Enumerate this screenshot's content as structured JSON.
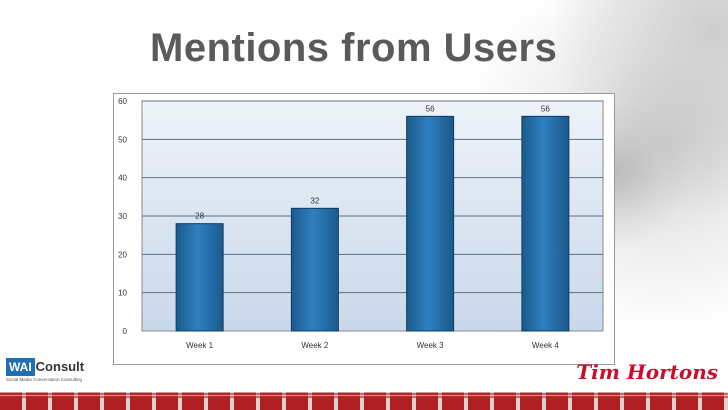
{
  "slide": {
    "title": "Mentions from Users"
  },
  "logos": {
    "left_box": "WAI",
    "left_word": "Consult",
    "left_tagline": "Social Media Conversation Consulting",
    "right_brand": "Tim Hortons"
  },
  "colors": {
    "bar_fill": "#1a5a8c",
    "bar_highlight": "#2f7fbf",
    "plot_bg_top": "#eef3f9",
    "plot_bg_bottom": "#c9d8ea",
    "title": "#5a5a5a",
    "footer_red": "#b01f23"
  },
  "chart_data": {
    "type": "bar",
    "title": "",
    "xlabel": "",
    "ylabel": "",
    "categories": [
      "Week 1",
      "Week 2",
      "Week 3",
      "Week 4"
    ],
    "values": [
      28,
      32,
      56,
      56
    ],
    "ylim": [
      0,
      60
    ],
    "yticks": [
      0,
      10,
      20,
      30,
      40,
      50,
      60
    ],
    "grid": true,
    "legend": "none",
    "data_labels": true
  }
}
